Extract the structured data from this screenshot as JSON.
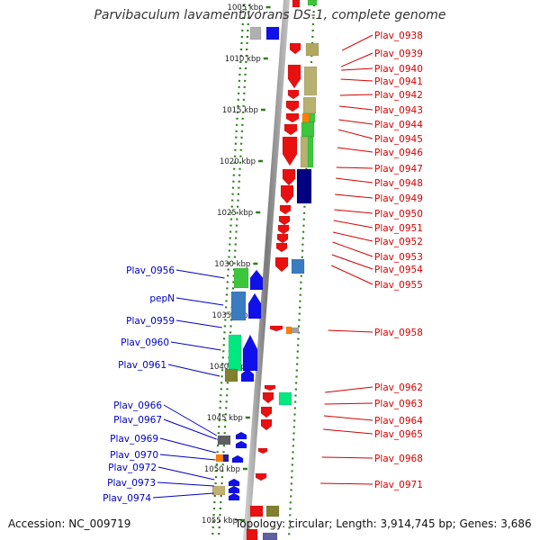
{
  "title": "Parvibaculum lavamentivorans DS-1, complete genome",
  "footer": {
    "accession": "Accession: NC_009719",
    "summary": "Topology: circular; Length: 3,914,745 bp; Genes: 3,686"
  },
  "colors": {
    "right_label": "#d40000",
    "left_label": "#0000c0",
    "backbone": "#8c8c8c",
    "tick": "#2e7d1a"
  },
  "scale": {
    "unit": "kbp",
    "ticks": [
      1005,
      1010,
      1015,
      1020,
      1025,
      1030,
      1035,
      1040,
      1045,
      1050,
      1055
    ],
    "tick_labels": [
      "1005 kbp",
      "1010 kbp",
      "1015 kbp",
      "1020 kbp",
      "1025 kbp",
      "1030 kbp",
      "1035 kbp",
      "1040 kbp",
      "1045 kbp",
      "1050 kbp",
      "1055 kbp"
    ]
  },
  "right_genes": [
    "Plav_0938",
    "Plav_0939",
    "Plav_0940",
    "Plav_0941",
    "Plav_0942",
    "Plav_0943",
    "Plav_0944",
    "Plav_0945",
    "Plav_0946",
    "Plav_0947",
    "Plav_0948",
    "Plav_0949",
    "Plav_0950",
    "Plav_0951",
    "Plav_0952",
    "Plav_0953",
    "Plav_0954",
    "Plav_0955",
    "Plav_0958",
    "Plav_0962",
    "Plav_0963",
    "Plav_0964",
    "Plav_0965",
    "Plav_0968",
    "Plav_0971"
  ],
  "left_genes": [
    "Plav_0956",
    "pepN",
    "Plav_0959",
    "Plav_0960",
    "Plav_0961",
    "Plav_0966",
    "Plav_0967",
    "Plav_0969",
    "Plav_0970",
    "Plav_0972",
    "Plav_0973",
    "Plav_0974"
  ]
}
